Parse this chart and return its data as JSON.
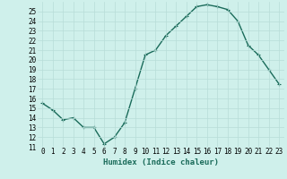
{
  "x": [
    0,
    1,
    2,
    3,
    4,
    5,
    6,
    7,
    8,
    9,
    10,
    11,
    12,
    13,
    14,
    15,
    16,
    17,
    18,
    19,
    20,
    21,
    22,
    23
  ],
  "y": [
    15.5,
    14.8,
    13.8,
    14.0,
    13.0,
    13.0,
    11.3,
    12.0,
    13.5,
    17.0,
    20.5,
    21.0,
    22.5,
    23.5,
    24.5,
    25.5,
    25.7,
    25.5,
    25.2,
    24.0,
    21.5,
    20.5,
    19.0,
    17.5
  ],
  "xlim": [
    -0.5,
    23.5
  ],
  "ylim": [
    11,
    26
  ],
  "yticks": [
    11,
    12,
    13,
    14,
    15,
    16,
    17,
    18,
    19,
    20,
    21,
    22,
    23,
    24,
    25
  ],
  "xticks": [
    0,
    1,
    2,
    3,
    4,
    5,
    6,
    7,
    8,
    9,
    10,
    11,
    12,
    13,
    14,
    15,
    16,
    17,
    18,
    19,
    20,
    21,
    22,
    23
  ],
  "xlabel": "Humidex (Indice chaleur)",
  "line_color": "#1a6b5a",
  "marker": "+",
  "bg_color": "#cff0eb",
  "grid_color": "#b8ddd8",
  "tick_label_fontsize": 5.5,
  "xlabel_fontsize": 6.5,
  "line_width": 1.0,
  "marker_size": 3.5
}
